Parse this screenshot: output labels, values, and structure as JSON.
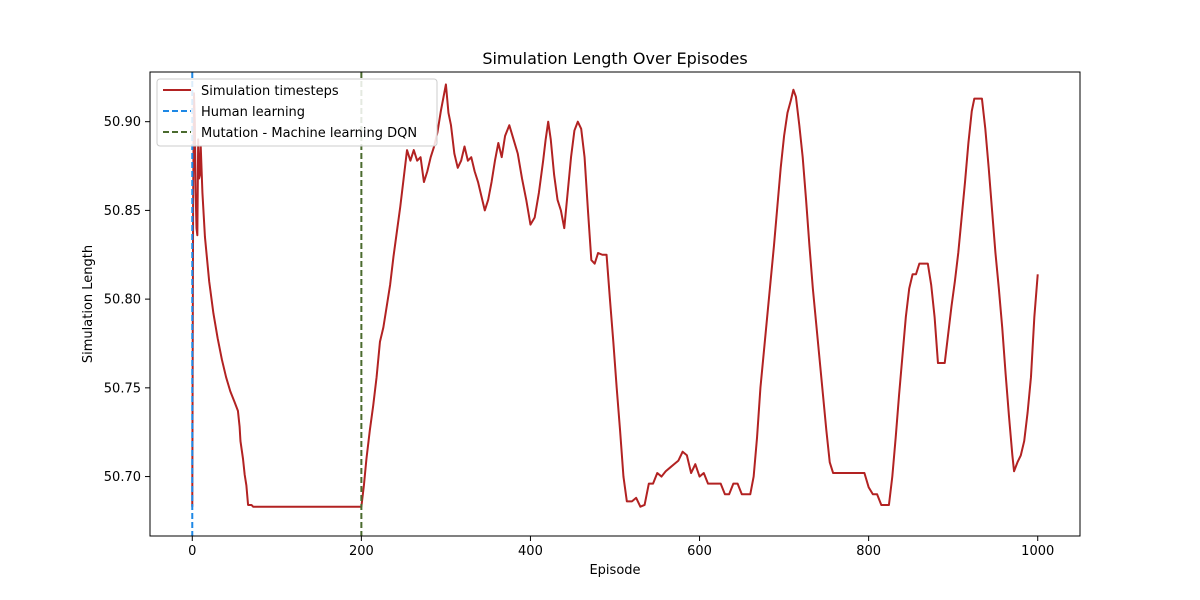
{
  "chart_data": {
    "type": "line",
    "title": "Simulation Length Over Episodes",
    "xlabel": "Episode",
    "ylabel": "Simulation Length",
    "xlim": [
      -50,
      1050
    ],
    "ylim": [
      50.6665,
      50.928
    ],
    "xticks": [
      0,
      200,
      400,
      600,
      800,
      1000
    ],
    "yticks": [
      50.7,
      50.75,
      50.8,
      50.85,
      50.9
    ],
    "xtick_labels": [
      "0",
      "200",
      "400",
      "600",
      "800",
      "1000"
    ],
    "ytick_labels": [
      "50.70",
      "50.75",
      "50.80",
      "50.85",
      "50.90"
    ],
    "grid": false,
    "legend_position": "upper-left",
    "series": [
      {
        "name": "Simulation timesteps",
        "color": "#b22222",
        "style": "solid",
        "points": [
          [
            0,
            50.683
          ],
          [
            1,
            50.855
          ],
          [
            2,
            50.916
          ],
          [
            3,
            50.9
          ],
          [
            4,
            50.86
          ],
          [
            5,
            50.84
          ],
          [
            6,
            50.836
          ],
          [
            7,
            50.89
          ],
          [
            8,
            50.868
          ],
          [
            9,
            50.87
          ],
          [
            10,
            50.886
          ],
          [
            12,
            50.86
          ],
          [
            15,
            50.835
          ],
          [
            20,
            50.81
          ],
          [
            25,
            50.792
          ],
          [
            30,
            50.778
          ],
          [
            35,
            50.766
          ],
          [
            40,
            50.756
          ],
          [
            45,
            50.748
          ],
          [
            50,
            50.742
          ],
          [
            54,
            50.737
          ],
          [
            56,
            50.728
          ],
          [
            57,
            50.72
          ],
          [
            60,
            50.71
          ],
          [
            62,
            50.701
          ],
          [
            64,
            50.695
          ],
          [
            66,
            50.684
          ],
          [
            70,
            50.684
          ],
          [
            72,
            50.683
          ],
          [
            100,
            50.683
          ],
          [
            150,
            50.683
          ],
          [
            199,
            50.683
          ],
          [
            200,
            50.683
          ],
          [
            203,
            50.695
          ],
          [
            206,
            50.71
          ],
          [
            210,
            50.726
          ],
          [
            214,
            50.74
          ],
          [
            218,
            50.756
          ],
          [
            222,
            50.776
          ],
          [
            226,
            50.784
          ],
          [
            230,
            50.796
          ],
          [
            234,
            50.808
          ],
          [
            238,
            50.824
          ],
          [
            242,
            50.838
          ],
          [
            246,
            50.852
          ],
          [
            250,
            50.868
          ],
          [
            254,
            50.884
          ],
          [
            258,
            50.878
          ],
          [
            262,
            50.884
          ],
          [
            266,
            50.878
          ],
          [
            270,
            50.88
          ],
          [
            274,
            50.866
          ],
          [
            278,
            50.872
          ],
          [
            282,
            50.88
          ],
          [
            286,
            50.886
          ],
          [
            290,
            50.894
          ],
          [
            294,
            50.906
          ],
          [
            298,
            50.916
          ],
          [
            300,
            50.921
          ],
          [
            303,
            50.905
          ],
          [
            306,
            50.898
          ],
          [
            310,
            50.882
          ],
          [
            314,
            50.874
          ],
          [
            318,
            50.878
          ],
          [
            322,
            50.886
          ],
          [
            326,
            50.878
          ],
          [
            330,
            50.88
          ],
          [
            334,
            50.872
          ],
          [
            338,
            50.866
          ],
          [
            342,
            50.858
          ],
          [
            346,
            50.85
          ],
          [
            350,
            50.856
          ],
          [
            354,
            50.866
          ],
          [
            358,
            50.878
          ],
          [
            362,
            50.888
          ],
          [
            366,
            50.88
          ],
          [
            370,
            50.892
          ],
          [
            375,
            50.898
          ],
          [
            380,
            50.89
          ],
          [
            385,
            50.882
          ],
          [
            390,
            50.868
          ],
          [
            395,
            50.856
          ],
          [
            400,
            50.842
          ],
          [
            405,
            50.846
          ],
          [
            410,
            50.86
          ],
          [
            415,
            50.878
          ],
          [
            418,
            50.89
          ],
          [
            421,
            50.9
          ],
          [
            424,
            50.89
          ],
          [
            428,
            50.87
          ],
          [
            432,
            50.856
          ],
          [
            436,
            50.85
          ],
          [
            440,
            50.84
          ],
          [
            444,
            50.86
          ],
          [
            448,
            50.88
          ],
          [
            452,
            50.895
          ],
          [
            456,
            50.9
          ],
          [
            460,
            50.896
          ],
          [
            464,
            50.88
          ],
          [
            468,
            50.85
          ],
          [
            472,
            50.822
          ],
          [
            476,
            50.82
          ],
          [
            480,
            50.826
          ],
          [
            485,
            50.825
          ],
          [
            490,
            50.825
          ],
          [
            494,
            50.8
          ],
          [
            498,
            50.776
          ],
          [
            502,
            50.75
          ],
          [
            506,
            50.726
          ],
          [
            510,
            50.7
          ],
          [
            514,
            50.686
          ],
          [
            520,
            50.686
          ],
          [
            525,
            50.688
          ],
          [
            530,
            50.683
          ],
          [
            535,
            50.684
          ],
          [
            540,
            50.696
          ],
          [
            545,
            50.696
          ],
          [
            550,
            50.702
          ],
          [
            555,
            50.7
          ],
          [
            560,
            50.703
          ],
          [
            565,
            50.705
          ],
          [
            570,
            50.707
          ],
          [
            575,
            50.709
          ],
          [
            580,
            50.714
          ],
          [
            585,
            50.712
          ],
          [
            590,
            50.702
          ],
          [
            595,
            50.707
          ],
          [
            600,
            50.7
          ],
          [
            605,
            50.702
          ],
          [
            610,
            50.696
          ],
          [
            615,
            50.696
          ],
          [
            620,
            50.696
          ],
          [
            625,
            50.696
          ],
          [
            630,
            50.69
          ],
          [
            635,
            50.69
          ],
          [
            640,
            50.696
          ],
          [
            645,
            50.696
          ],
          [
            650,
            50.69
          ],
          [
            655,
            50.69
          ],
          [
            660,
            50.69
          ],
          [
            664,
            50.7
          ],
          [
            668,
            50.722
          ],
          [
            672,
            50.75
          ],
          [
            676,
            50.77
          ],
          [
            680,
            50.79
          ],
          [
            684,
            50.81
          ],
          [
            688,
            50.83
          ],
          [
            692,
            50.852
          ],
          [
            696,
            50.874
          ],
          [
            700,
            50.892
          ],
          [
            704,
            50.905
          ],
          [
            708,
            50.912
          ],
          [
            711,
            50.918
          ],
          [
            714,
            50.914
          ],
          [
            718,
            50.898
          ],
          [
            722,
            50.88
          ],
          [
            726,
            50.856
          ],
          [
            730,
            50.83
          ],
          [
            734,
            50.806
          ],
          [
            738,
            50.786
          ],
          [
            742,
            50.766
          ],
          [
            746,
            50.746
          ],
          [
            750,
            50.726
          ],
          [
            754,
            50.708
          ],
          [
            758,
            50.702
          ],
          [
            765,
            50.702
          ],
          [
            775,
            50.702
          ],
          [
            785,
            50.702
          ],
          [
            795,
            50.702
          ],
          [
            800,
            50.694
          ],
          [
            805,
            50.69
          ],
          [
            810,
            50.69
          ],
          [
            815,
            50.684
          ],
          [
            820,
            50.684
          ],
          [
            824,
            50.684
          ],
          [
            828,
            50.7
          ],
          [
            832,
            50.722
          ],
          [
            836,
            50.746
          ],
          [
            840,
            50.768
          ],
          [
            844,
            50.79
          ],
          [
            848,
            50.806
          ],
          [
            852,
            50.814
          ],
          [
            856,
            50.814
          ],
          [
            860,
            50.82
          ],
          [
            866,
            50.82
          ],
          [
            870,
            50.82
          ],
          [
            874,
            50.808
          ],
          [
            878,
            50.79
          ],
          [
            882,
            50.764
          ],
          [
            886,
            50.764
          ],
          [
            890,
            50.764
          ],
          [
            894,
            50.78
          ],
          [
            898,
            50.796
          ],
          [
            902,
            50.81
          ],
          [
            906,
            50.826
          ],
          [
            910,
            50.846
          ],
          [
            914,
            50.866
          ],
          [
            918,
            50.888
          ],
          [
            922,
            50.906
          ],
          [
            925,
            50.913
          ],
          [
            930,
            50.913
          ],
          [
            934,
            50.913
          ],
          [
            938,
            50.896
          ],
          [
            942,
            50.874
          ],
          [
            946,
            50.85
          ],
          [
            950,
            50.826
          ],
          [
            954,
            50.806
          ],
          [
            958,
            50.784
          ],
          [
            962,
            50.758
          ],
          [
            966,
            50.734
          ],
          [
            970,
            50.712
          ],
          [
            972,
            50.703
          ],
          [
            976,
            50.708
          ],
          [
            980,
            50.712
          ],
          [
            984,
            50.72
          ],
          [
            988,
            50.736
          ],
          [
            992,
            50.756
          ],
          [
            996,
            50.79
          ],
          [
            1000,
            50.814
          ]
        ]
      },
      {
        "name": "Human learning",
        "color": "#1e88e5",
        "style": "dashed",
        "vline_x": 0
      },
      {
        "name": "Mutation - Machine learning DQN",
        "color": "#4a6b2e",
        "style": "dashed",
        "vline_x": 200
      }
    ]
  }
}
